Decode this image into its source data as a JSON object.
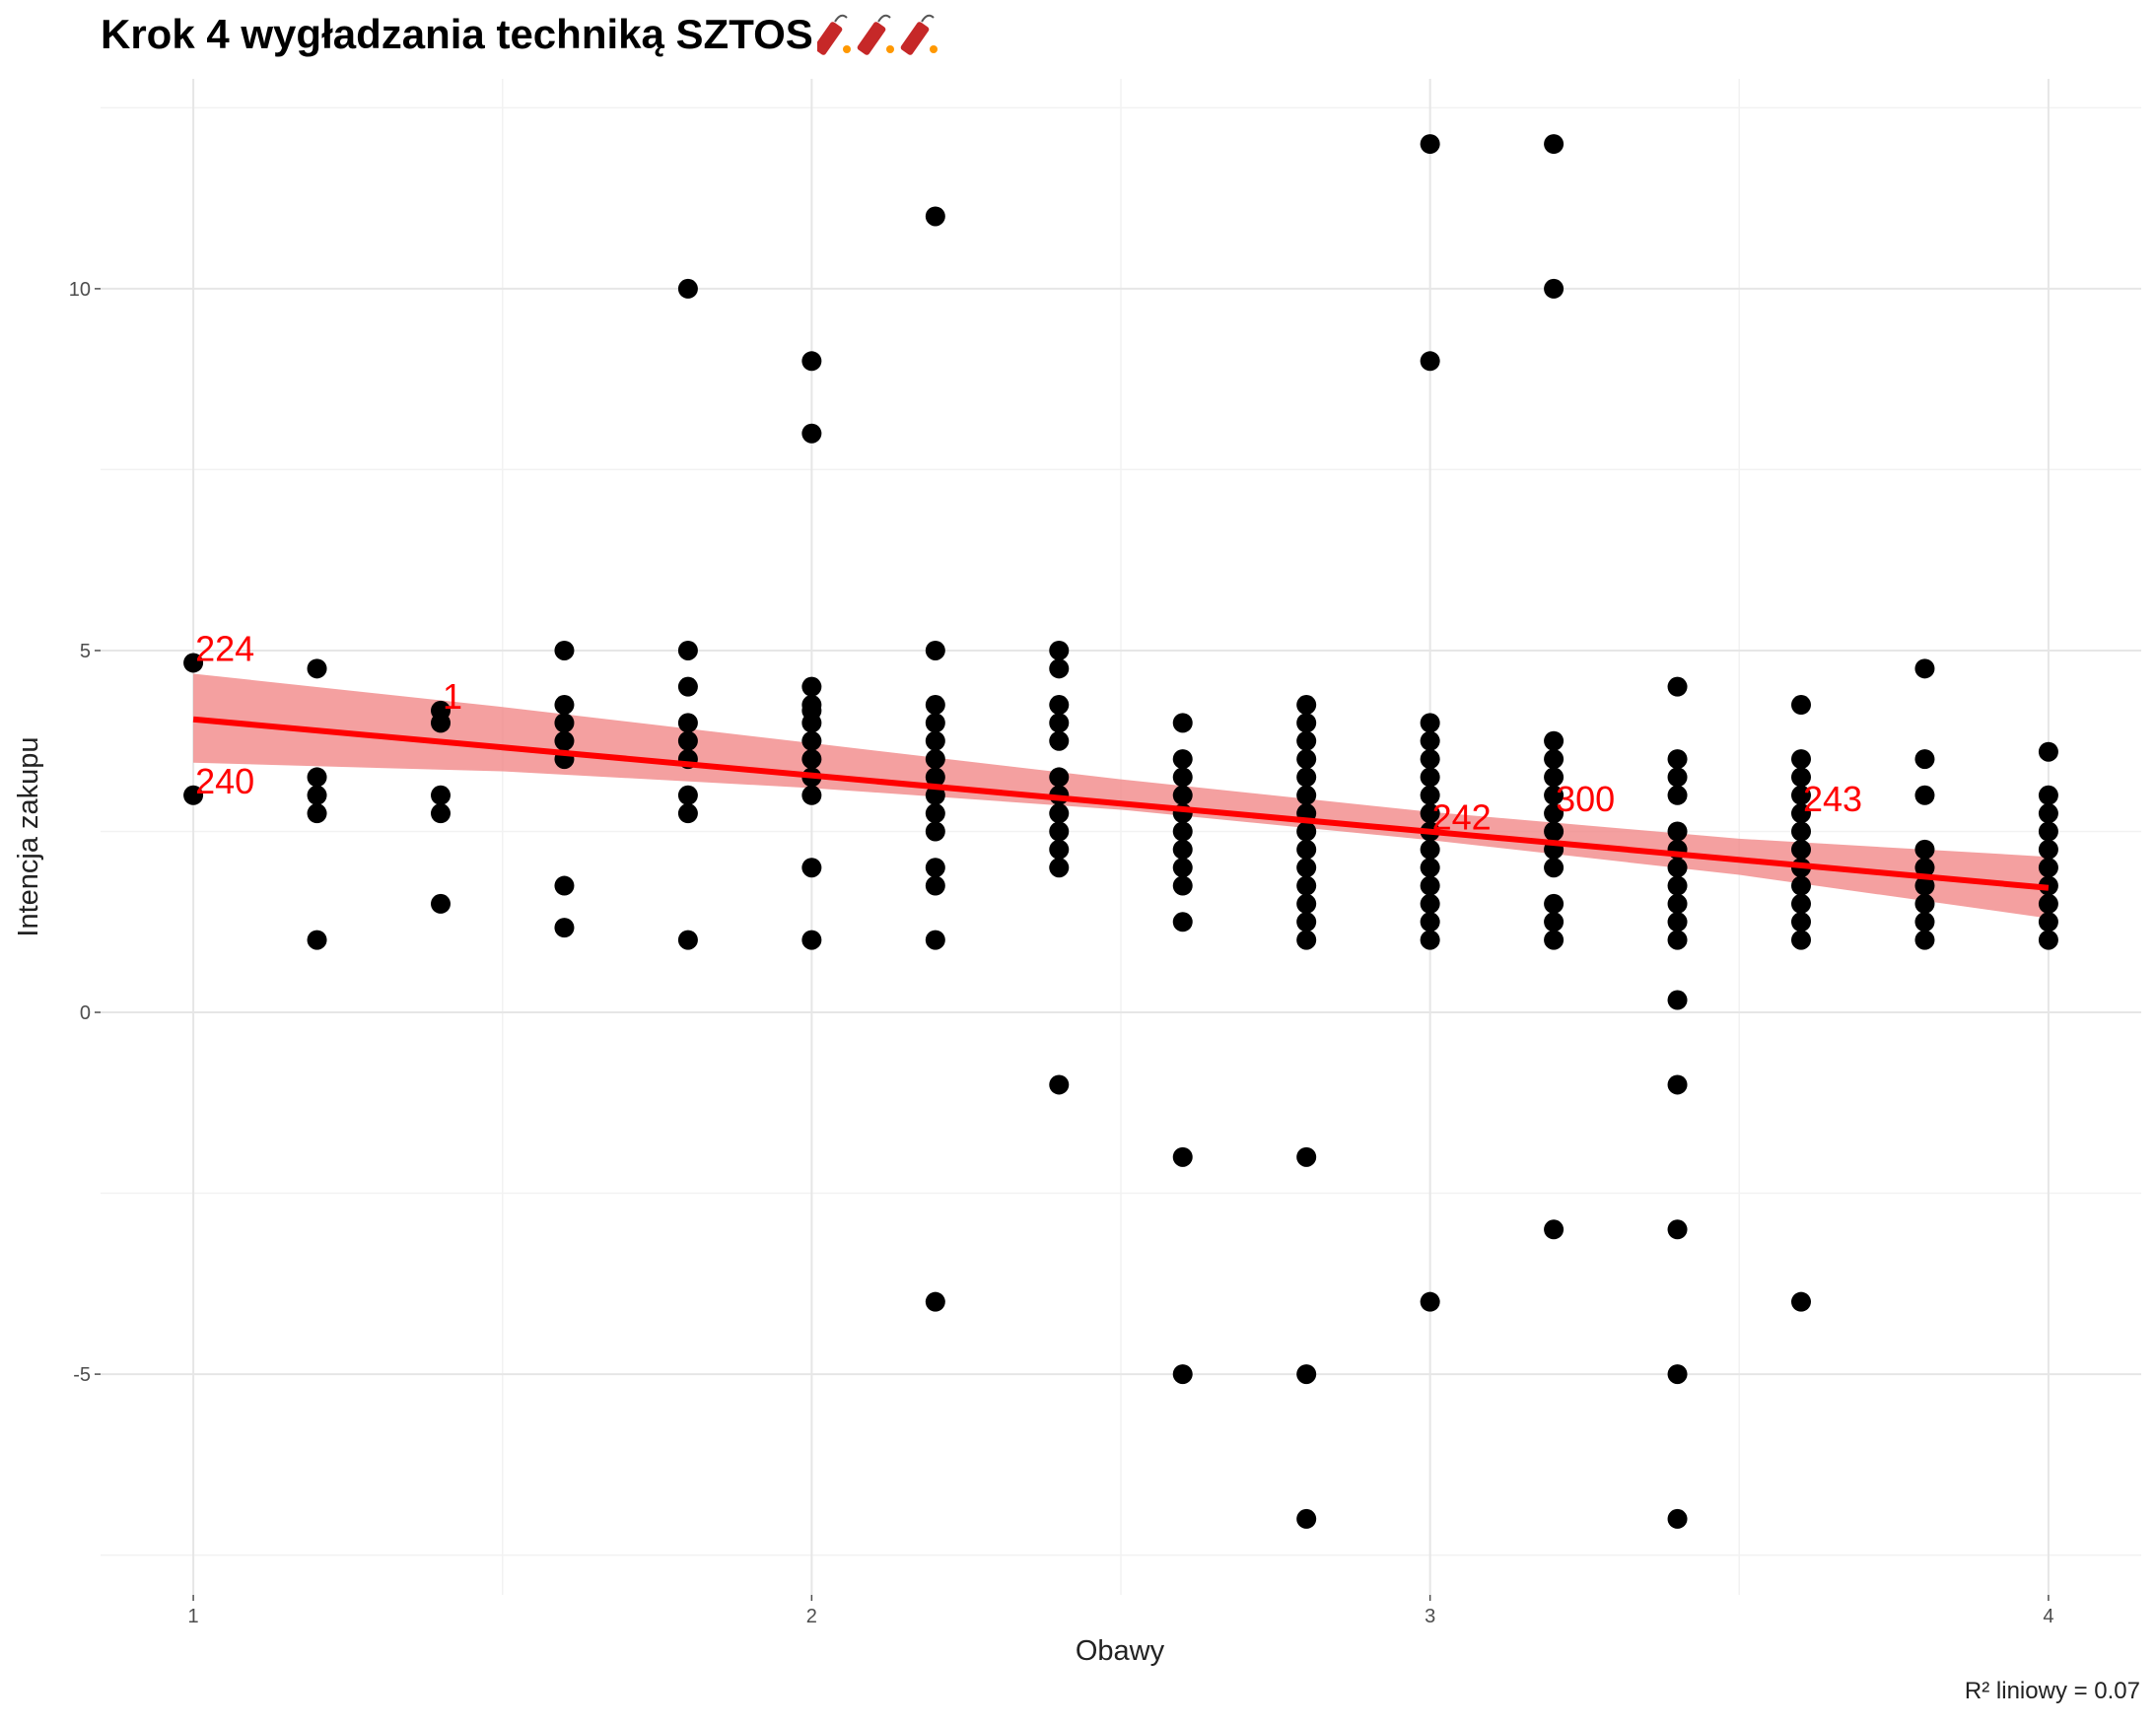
{
  "title": "Krok 4 wygładzania techniką SZTOS",
  "title_icons": [
    "firecracker-icon",
    "firecracker-icon",
    "firecracker-icon"
  ],
  "caption": "R² liniowy = 0.07",
  "chart_data": {
    "type": "scatter",
    "title": "Krok 4 wygładzania techniką SZTOS",
    "xlabel": "Obawy",
    "ylabel": "Intencja zakupu",
    "xlim": [
      0.85,
      4.15
    ],
    "ylim": [
      -8.05,
      12.9
    ],
    "xticks": [
      1,
      2,
      3,
      4
    ],
    "xtick_labels": [
      "1",
      "2",
      "3",
      "4"
    ],
    "yticks": [
      -5,
      0,
      5,
      10
    ],
    "ytick_labels": [
      "-5",
      "0",
      "5",
      "10"
    ],
    "minor_x": [
      1.5,
      2.5,
      3.5
    ],
    "minor_y": [
      -7.5,
      -2.5,
      2.5,
      7.5,
      12.5
    ],
    "grid": true,
    "point_color": "#000000",
    "line_color": "#ff0000",
    "band_color": "#f08080",
    "columns": [
      {
        "x": 1.0,
        "y": [
          4.83,
          3
        ]
      },
      {
        "x": 1.2,
        "y": [
          4.75,
          3.25,
          3,
          2.75,
          1
        ]
      },
      {
        "x": 1.4,
        "y": [
          4.17,
          4,
          3,
          2.75,
          1.5
        ]
      },
      {
        "x": 1.6,
        "y": [
          5,
          4.25,
          4,
          3.75,
          3.5,
          1.75,
          1.17
        ]
      },
      {
        "x": 1.8,
        "y": [
          10,
          5,
          4.5,
          4,
          3.75,
          3.5,
          3,
          2.75,
          1
        ]
      },
      {
        "x": 2.0,
        "y": [
          9,
          8,
          4.5,
          4.25,
          4.17,
          4,
          3.75,
          3.5,
          3.25,
          3,
          2,
          1
        ]
      },
      {
        "x": 2.2,
        "y": [
          11,
          5,
          4.25,
          4,
          3.75,
          3.5,
          3.25,
          3,
          2.75,
          2.5,
          2,
          1.75,
          1,
          -4
        ]
      },
      {
        "x": 2.4,
        "y": [
          5,
          4.75,
          4.25,
          4,
          3.75,
          3.25,
          3,
          2.75,
          2.5,
          2.25,
          2,
          -1
        ]
      },
      {
        "x": 2.6,
        "y": [
          4,
          3.5,
          3.25,
          3,
          2.75,
          2.5,
          2.25,
          2,
          1.75,
          1.25,
          -2,
          -5
        ]
      },
      {
        "x": 2.8,
        "y": [
          4.25,
          4,
          3.75,
          3.5,
          3.25,
          3,
          2.75,
          2.5,
          2.25,
          2,
          1.75,
          1.5,
          1.25,
          1,
          -2,
          -5,
          -7
        ]
      },
      {
        "x": 3.0,
        "y": [
          12,
          9,
          4,
          3.75,
          3.5,
          3.25,
          3,
          2.75,
          2.5,
          2.25,
          2,
          1.75,
          1.5,
          1.25,
          1,
          -4
        ]
      },
      {
        "x": 3.2,
        "y": [
          12,
          10,
          3.75,
          3.5,
          3.25,
          3,
          2.75,
          2.5,
          2.25,
          2,
          1.5,
          1.25,
          1,
          -3
        ]
      },
      {
        "x": 3.4,
        "y": [
          4.5,
          3.5,
          3.25,
          3,
          2.5,
          2.25,
          2,
          1.75,
          1.5,
          1.25,
          1,
          0.17,
          -1,
          -3,
          -5,
          -7
        ]
      },
      {
        "x": 3.6,
        "y": [
          4.25,
          3.5,
          3.25,
          3,
          2.75,
          2.5,
          2.25,
          2,
          1.75,
          1.5,
          1.25,
          1,
          -4
        ]
      },
      {
        "x": 3.8,
        "y": [
          4.75,
          3.5,
          3,
          2.25,
          2,
          1.75,
          1.5,
          1.25,
          1
        ]
      },
      {
        "x": 4.0,
        "y": [
          3.6,
          3,
          2.75,
          2.5,
          2.25,
          2,
          1.75,
          1.5,
          1.25,
          1
        ]
      }
    ],
    "point_labels": [
      {
        "text": "224",
        "x": 1.0,
        "y": 4.83
      },
      {
        "text": "240",
        "x": 1.0,
        "y": 3
      },
      {
        "text": "1",
        "x": 1.4,
        "y": 4.17
      },
      {
        "text": "242",
        "x": 3.0,
        "y": 2.5
      },
      {
        "text": "300",
        "x": 3.2,
        "y": 2.75
      },
      {
        "text": "243",
        "x": 3.6,
        "y": 2.75
      }
    ],
    "regression": {
      "x": [
        1,
        4
      ],
      "y": [
        4.05,
        1.72
      ]
    },
    "confidence_band": {
      "x": [
        1,
        1.5,
        2,
        2.5,
        3,
        3.5,
        4
      ],
      "lower": [
        3.45,
        3.33,
        3.1,
        2.8,
        2.38,
        1.9,
        1.3
      ],
      "upper": [
        4.68,
        4.22,
        3.72,
        3.22,
        2.77,
        2.4,
        2.15
      ]
    }
  }
}
